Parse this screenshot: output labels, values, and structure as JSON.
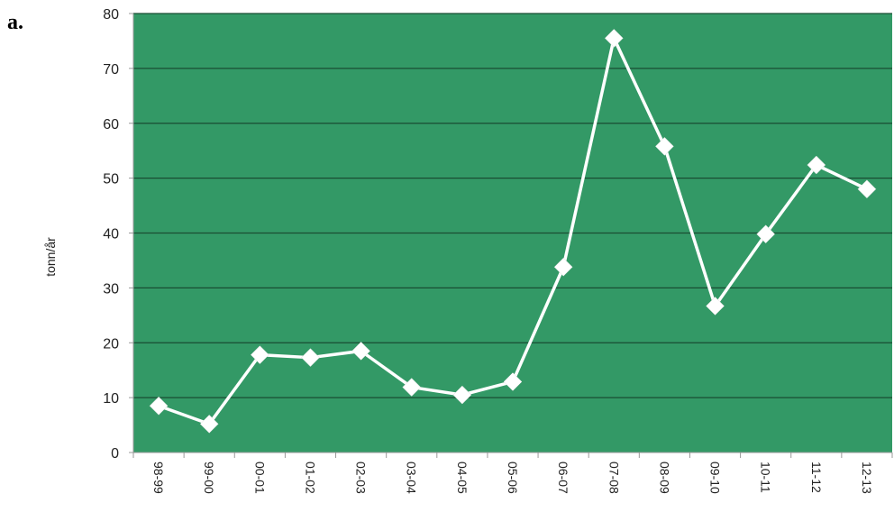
{
  "panel_label": "a.",
  "colors": {
    "plot_background": "#339966",
    "gridline": "#1a4d33",
    "line": "#ffffff",
    "marker": "#ffffff",
    "axis": "#999999"
  },
  "chart_data": {
    "type": "line",
    "title": "",
    "xlabel": "",
    "ylabel": "tonn/år",
    "categories": [
      "98-99",
      "99-00",
      "00-01",
      "01-02",
      "02-03",
      "03-04",
      "04-05",
      "05-06",
      "06-07",
      "07-08",
      "08-09",
      "09-10",
      "10-11",
      "11-12",
      "12-13"
    ],
    "series": [
      {
        "values": [
          8.5,
          5.2,
          17.8,
          17.3,
          18.5,
          11.9,
          10.5,
          12.9,
          33.8,
          75.5,
          55.8,
          26.7,
          39.8,
          52.4,
          48.0
        ]
      }
    ],
    "ylim": [
      0,
      80
    ],
    "yticks": [
      0,
      10,
      20,
      30,
      40,
      50,
      60,
      70,
      80
    ],
    "grid": true,
    "marker": "diamond",
    "legend": "none"
  }
}
